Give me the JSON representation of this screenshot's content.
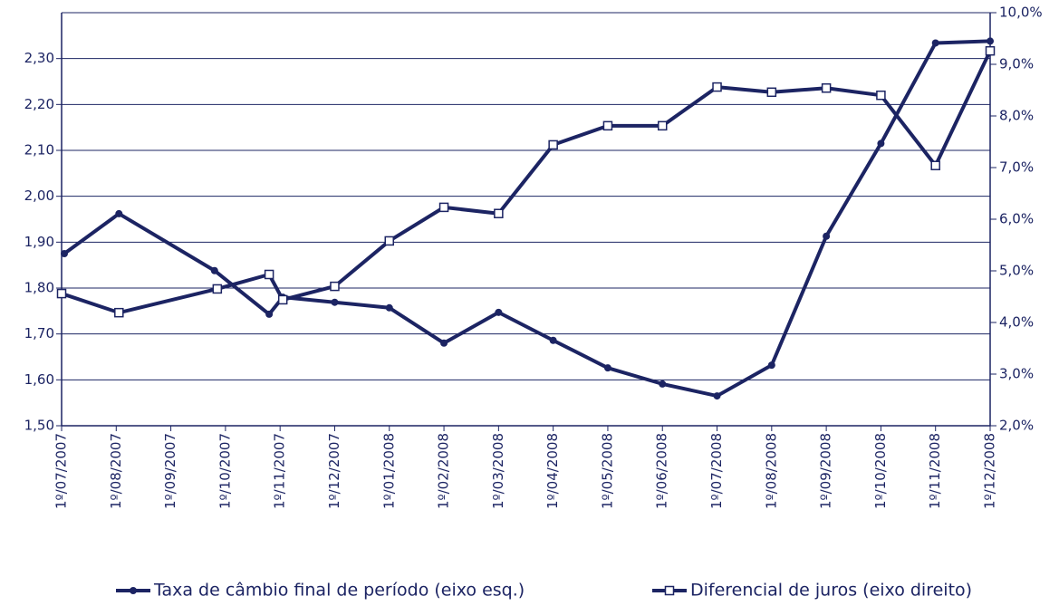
{
  "chart_data": {
    "type": "line",
    "xlim": [
      0,
      17
    ],
    "xticks": [
      {
        "value": 0,
        "label": "1º/07/2007"
      },
      {
        "value": 1,
        "label": "1º/08/2007"
      },
      {
        "value": 2,
        "label": "1º/09/2007"
      },
      {
        "value": 3,
        "label": "1º/10/2007"
      },
      {
        "value": 4,
        "label": "1º/11/2007"
      },
      {
        "value": 5,
        "label": "1º/12/2007"
      },
      {
        "value": 6,
        "label": "1º/01/2008"
      },
      {
        "value": 7,
        "label": "1º/02/2008"
      },
      {
        "value": 8,
        "label": "1º/03/2008"
      },
      {
        "value": 9,
        "label": "1º/04/2008"
      },
      {
        "value": 10,
        "label": "1º/05/2008"
      },
      {
        "value": 11,
        "label": "1º/06/2008"
      },
      {
        "value": 12,
        "label": "1º/07/2008"
      },
      {
        "value": 13,
        "label": "1º/08/2008"
      },
      {
        "value": 14,
        "label": "1º/09/2008"
      },
      {
        "value": 15,
        "label": "1º/10/2008"
      },
      {
        "value": 16,
        "label": "1º/11/2008"
      },
      {
        "value": 17,
        "label": "1º/12/2008"
      }
    ],
    "ylim": [
      1.5,
      2.4
    ],
    "yticks": [
      {
        "value": 1.5,
        "label": "1,50"
      },
      {
        "value": 1.6,
        "label": "1,60"
      },
      {
        "value": 1.7,
        "label": "1,70"
      },
      {
        "value": 1.8,
        "label": "1,80"
      },
      {
        "value": 1.9,
        "label": "1,90"
      },
      {
        "value": 2.0,
        "label": "2,00"
      },
      {
        "value": 2.1,
        "label": "2,10"
      },
      {
        "value": 2.2,
        "label": "2,20"
      },
      {
        "value": 2.3,
        "label": "2,30"
      }
    ],
    "y2lim": [
      2,
      10
    ],
    "y2ticks": [
      {
        "value": 2,
        "label": "2,0%"
      },
      {
        "value": 3,
        "label": "3,0%"
      },
      {
        "value": 4,
        "label": "4,0%"
      },
      {
        "value": 5,
        "label": "5,0%"
      },
      {
        "value": 6,
        "label": "6,0%"
      },
      {
        "value": 7,
        "label": "7,0%"
      },
      {
        "value": 8,
        "label": "8,0%"
      },
      {
        "value": 9,
        "label": "9,0%"
      },
      {
        "value": 10,
        "label": "10,0%"
      }
    ],
    "grid": true,
    "legend": "bottom",
    "series": [
      {
        "name": "Taxa de câmbio final de período (eixo esq.)",
        "color": "#1c2463",
        "marker": "circle",
        "x": [
          0.05,
          1.05,
          2.8,
          3.8,
          4.05,
          5,
          6,
          7,
          8,
          9,
          10,
          11,
          12,
          13,
          14,
          15,
          16,
          17
        ],
        "values": [
          1.875,
          1.962,
          1.838,
          1.743,
          1.78,
          1.769,
          1.757,
          1.68,
          1.747,
          1.686,
          1.626,
          1.591,
          1.565,
          1.632,
          1.913,
          2.115,
          2.334,
          2.338
        ]
      },
      {
        "name": "Diferencial de juros (eixo direito)",
        "color": "#1c2463",
        "marker": "square",
        "axis": "y2",
        "x": [
          0,
          1.05,
          2.85,
          3.8,
          4.05,
          5,
          6,
          7,
          8,
          9,
          10,
          11,
          12,
          13,
          14,
          15,
          16,
          17
        ],
        "values": [
          4.56,
          4.19,
          4.65,
          4.93,
          4.44,
          4.7,
          5.58,
          6.23,
          6.11,
          7.44,
          7.81,
          7.81,
          8.56,
          8.46,
          8.54,
          8.4,
          7.04,
          9.26
        ]
      }
    ]
  }
}
